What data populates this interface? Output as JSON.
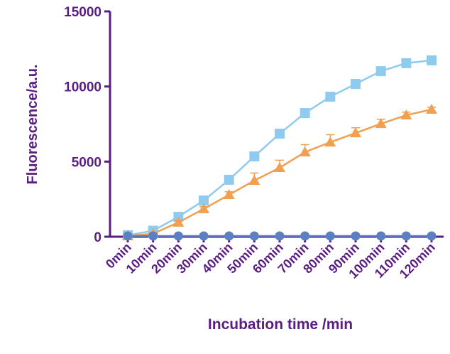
{
  "chart_data": {
    "type": "line",
    "x_label": "Incubation time /min",
    "y_label": "Fluorescence/a.u.",
    "categories": [
      "0min",
      "10min",
      "20min",
      "30min",
      "40min",
      "50min",
      "60min",
      "70min",
      "80min",
      "90min",
      "100min",
      "110min",
      "120min"
    ],
    "series": [
      {
        "color": "#8fcbef",
        "marker": "square",
        "values": [
          100,
          400,
          1325,
          2410,
          3790,
          5350,
          6860,
          8230,
          9320,
          10170,
          11020,
          11550,
          11740
        ]
      },
      {
        "color": "#f0a050",
        "marker": "triangle",
        "values": [
          50,
          200,
          950,
          1850,
          2790,
          3740,
          4590,
          5630,
          6290,
          6900,
          7520,
          8090,
          8470
        ],
        "errors": [
          50,
          100,
          150,
          150,
          200,
          500,
          500,
          500,
          500,
          350,
          300,
          200,
          150
        ]
      },
      {
        "color": "#5b7fc0",
        "marker": "circle",
        "values": [
          50,
          50,
          50,
          50,
          50,
          50,
          50,
          50,
          50,
          50,
          50,
          50,
          50
        ]
      }
    ],
    "ylim": [
      0,
      15000
    ],
    "yticks": [
      0,
      5000,
      10000,
      15000
    ]
  }
}
